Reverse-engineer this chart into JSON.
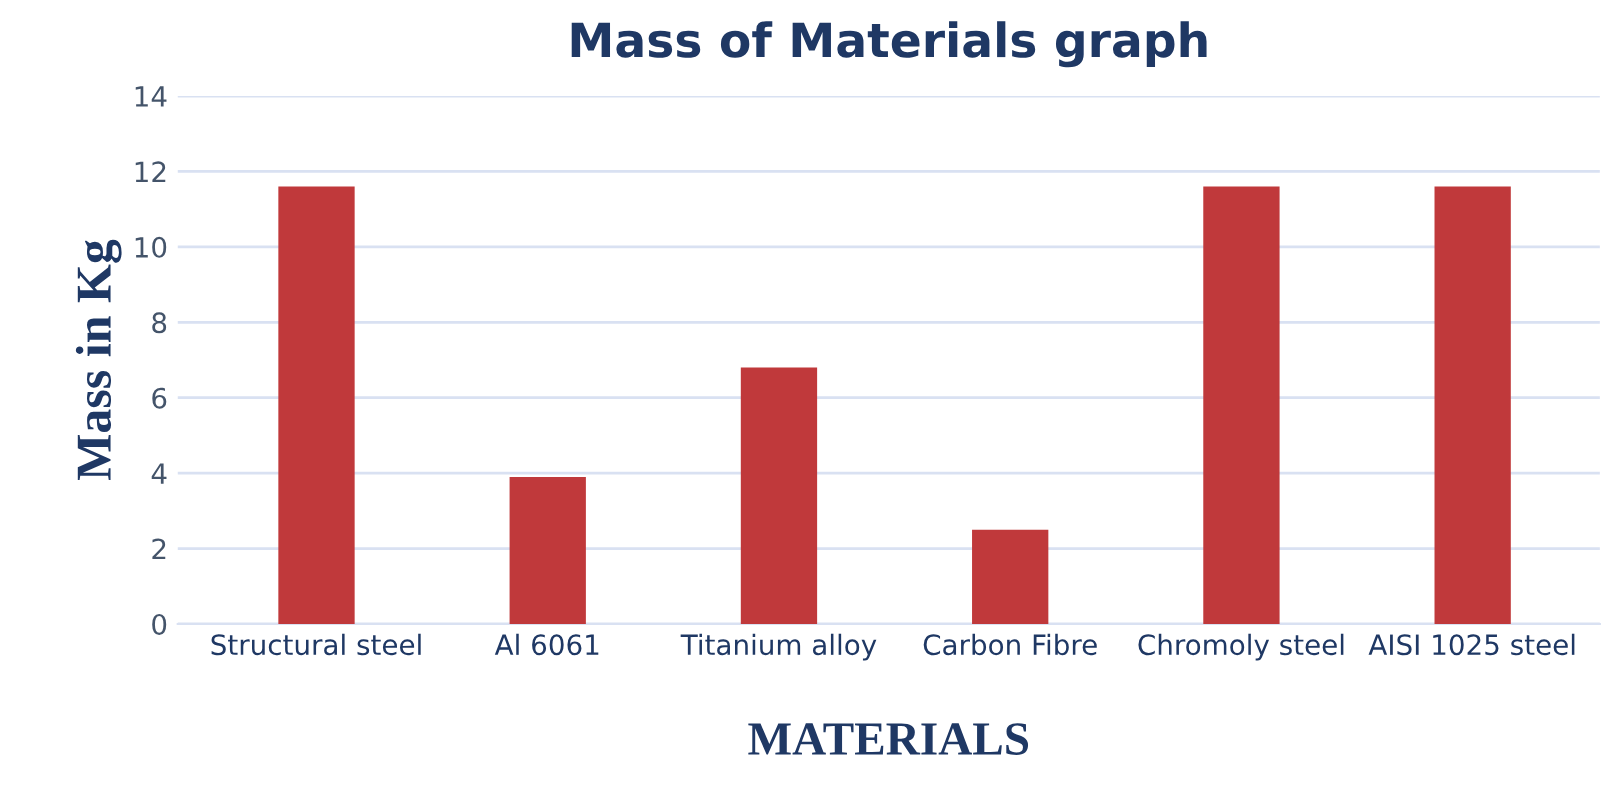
{
  "chart_data": {
    "type": "bar",
    "title": "Mass of Materials graph",
    "xlabel": "MATERIALS",
    "ylabel": "Mass in Kg",
    "categories": [
      "Structural steel",
      "Al 6061",
      "Titanium alloy",
      "Carbon Fibre",
      "Chromoly steel",
      "AISI 1025 steel"
    ],
    "values": [
      11.6,
      3.9,
      6.8,
      2.5,
      11.6,
      11.6
    ],
    "color": "#c0393b",
    "ylim": [
      0,
      14
    ],
    "yticks": [
      0,
      2,
      4,
      6,
      8,
      10,
      12,
      14
    ],
    "grid": "y"
  }
}
